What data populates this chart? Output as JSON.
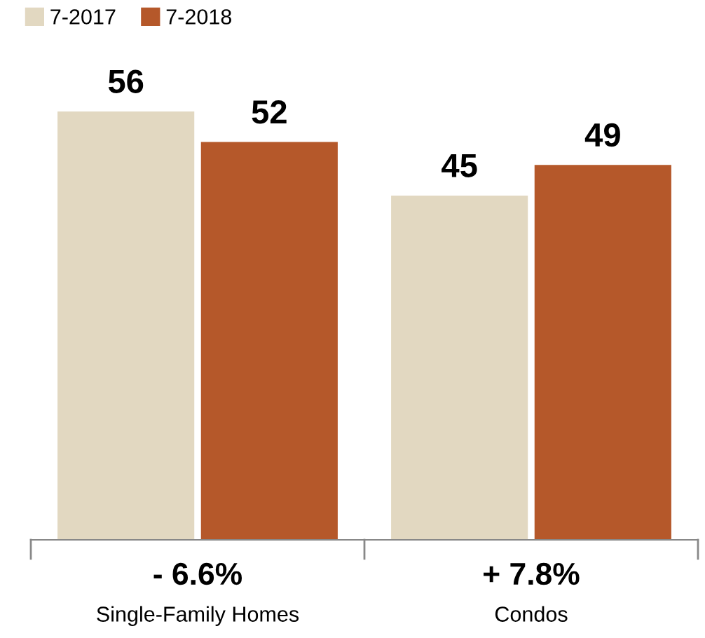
{
  "chart_data": {
    "type": "bar",
    "categories": [
      "Single-Family Homes",
      "Condos"
    ],
    "series": [
      {
        "name": "7-2017",
        "color": "#e2d8c1",
        "values": [
          56,
          45
        ]
      },
      {
        "name": "7-2018",
        "color": "#b5582a",
        "values": [
          52,
          49
        ]
      }
    ],
    "data_labels": true,
    "legend": "top left",
    "grid": false,
    "annotations": [
      "- 6.6%",
      "+ 7.8%"
    ]
  }
}
